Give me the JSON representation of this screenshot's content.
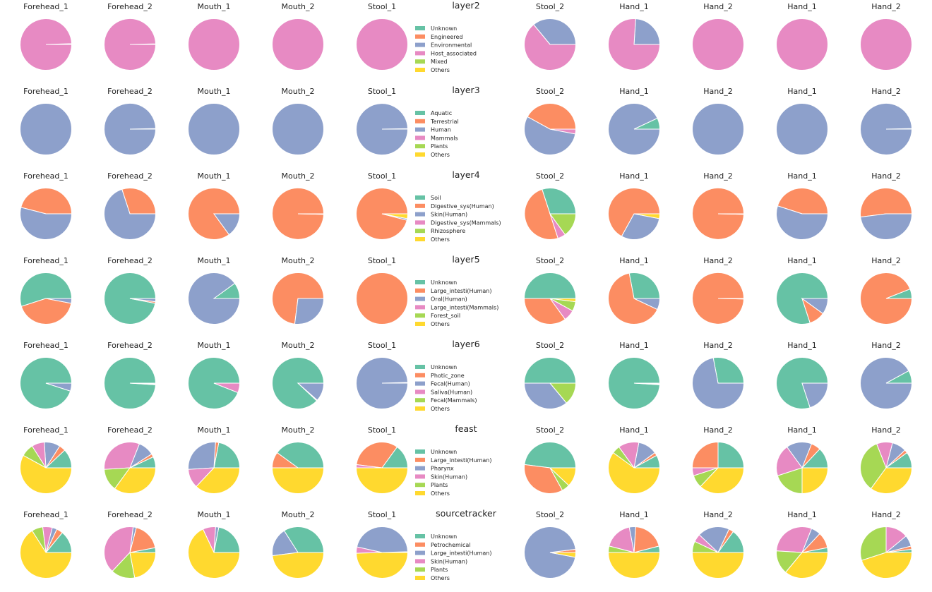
{
  "colors": [
    "#66c2a5",
    "#fc8d62",
    "#8da0cb",
    "#e78ac3",
    "#a6d854",
    "#ffd92f"
  ],
  "sample_labels": [
    "Forehead_1",
    "Forehead_2",
    "Mouth_1",
    "Mouth_2",
    "Stool_1",
    "Stool_2",
    "Hand_1",
    "Hand_2",
    "Hand_1",
    "Hand_2"
  ],
  "chart_data": [
    {
      "type": "pie",
      "title": "layer2",
      "legend": [
        "Unknown",
        "Engineered",
        "Environmental",
        "Host_associated",
        "Mixed",
        "Others"
      ],
      "pies": [
        [
          0,
          0,
          0.005,
          0.995,
          0,
          0
        ],
        [
          0,
          0,
          0.004,
          0.996,
          0,
          0
        ],
        [
          0,
          0,
          0,
          1,
          0,
          0
        ],
        [
          0,
          0,
          0,
          1,
          0,
          0
        ],
        [
          0,
          0,
          0,
          1,
          0,
          0
        ],
        [
          0,
          0,
          0.36,
          0.64,
          0,
          0
        ],
        [
          0,
          0,
          0.24,
          0.76,
          0,
          0
        ],
        [
          0,
          0,
          0,
          1,
          0,
          0
        ],
        [
          0,
          0,
          0,
          1,
          0,
          0
        ],
        [
          0,
          0,
          0,
          1,
          0,
          0
        ]
      ]
    },
    {
      "type": "pie",
      "title": "layer3",
      "legend": [
        "Aquatic",
        "Terrestrial",
        "Human",
        "Mammals",
        "Plants",
        "Others"
      ],
      "pies": [
        [
          0,
          0,
          1,
          0,
          0,
          0
        ],
        [
          0,
          0.004,
          0.996,
          0,
          0,
          0
        ],
        [
          0,
          0,
          1,
          0,
          0,
          0
        ],
        [
          0,
          0,
          1,
          0,
          0,
          0
        ],
        [
          0,
          0.003,
          0.997,
          0,
          0,
          0
        ],
        [
          0,
          0.42,
          0.55,
          0.03,
          0,
          0
        ],
        [
          0.07,
          0,
          0.93,
          0,
          0,
          0
        ],
        [
          0,
          0,
          1,
          0,
          0,
          0
        ],
        [
          0,
          0,
          1,
          0,
          0,
          0
        ],
        [
          0,
          0.004,
          0.996,
          0,
          0,
          0
        ]
      ]
    },
    {
      "type": "pie",
      "title": "layer4",
      "legend": [
        "Soil",
        "Digestive_sys(Human)",
        "Skin(Human)",
        "Digestive_sys(Mammals)",
        "Rhizosphere",
        "Others"
      ],
      "pies": [
        [
          0,
          0.46,
          0.54,
          0,
          0,
          0
        ],
        [
          0,
          0.3,
          0.7,
          0,
          0,
          0
        ],
        [
          0,
          0.85,
          0.15,
          0,
          0,
          0
        ],
        [
          0,
          0.997,
          0.003,
          0,
          0,
          0
        ],
        [
          0,
          0.96,
          0.01,
          0,
          0,
          0.03
        ],
        [
          0.3,
          0.5,
          0,
          0.05,
          0.15,
          0
        ],
        [
          0,
          0.67,
          0.3,
          0,
          0,
          0.03
        ],
        [
          0,
          0.997,
          0.003,
          0,
          0,
          0
        ],
        [
          0,
          0.45,
          0.55,
          0,
          0,
          0
        ],
        [
          0,
          0.52,
          0.48,
          0,
          0,
          0
        ]
      ]
    },
    {
      "type": "pie",
      "title": "layer5",
      "legend": [
        "Unknown",
        "Large_intesti(Human)",
        "Oral(Human)",
        "Large_intesti(Mammals)",
        "Forest_soil",
        "Others"
      ],
      "pies": [
        [
          0.55,
          0.42,
          0.03,
          0,
          0,
          0
        ],
        [
          0.97,
          0.01,
          0.02,
          0,
          0,
          0
        ],
        [
          0.1,
          0,
          0.9,
          0,
          0,
          0
        ],
        [
          0,
          0.73,
          0.27,
          0,
          0,
          0
        ],
        [
          0,
          1,
          0,
          0,
          0,
          0
        ],
        [
          0.5,
          0.35,
          0,
          0.07,
          0.06,
          0.02
        ],
        [
          0.28,
          0.65,
          0.07,
          0,
          0,
          0
        ],
        [
          0,
          0.997,
          0,
          0,
          0,
          0.003
        ],
        [
          0.8,
          0.1,
          0.1,
          0,
          0,
          0
        ],
        [
          0.06,
          0.94,
          0,
          0,
          0,
          0
        ]
      ]
    },
    {
      "type": "pie",
      "title": "layer6",
      "legend": [
        "Unknown",
        "Photic_zone",
        "Fecal(Human)",
        "Saliva(Human)",
        "Fecal(Mammals)",
        "Others"
      ],
      "pies": [
        [
          0.95,
          0,
          0.05,
          0,
          0,
          0
        ],
        [
          0.99,
          0.005,
          0.005,
          0,
          0,
          0
        ],
        [
          0.94,
          0,
          0,
          0.06,
          0,
          0
        ],
        [
          0.88,
          0.005,
          0.115,
          0,
          0,
          0
        ],
        [
          0,
          0.005,
          0.995,
          0,
          0,
          0
        ],
        [
          0.5,
          0,
          0.36,
          0,
          0.14,
          0
        ],
        [
          0.99,
          0.005,
          0.005,
          0,
          0,
          0
        ],
        [
          0.28,
          0,
          0.72,
          0,
          0,
          0
        ],
        [
          0.8,
          0,
          0.2,
          0,
          0,
          0
        ],
        [
          0.08,
          0,
          0.92,
          0,
          0,
          0
        ]
      ]
    },
    {
      "type": "pie",
      "title": "feast",
      "legend": [
        "Unknown",
        "Large_intesti(Human)",
        "Pharynx",
        "Skin(Human)",
        "Plants",
        "Others"
      ],
      "pies": [
        [
          0.12,
          0.04,
          0.1,
          0.08,
          0.08,
          0.58
        ],
        [
          0.07,
          0.02,
          0.1,
          0.32,
          0.14,
          0.35
        ],
        [
          0.22,
          0.02,
          0.27,
          0.12,
          0,
          0.37
        ],
        [
          0.4,
          0.1,
          0,
          0,
          0,
          0.5
        ],
        [
          0.15,
          0.33,
          0,
          0.02,
          0,
          0.5
        ],
        [
          0.48,
          0.35,
          0,
          0,
          0.05,
          0.12
        ],
        [
          0.08,
          0.02,
          0.12,
          0.13,
          0.05,
          0.6
        ],
        [
          0.25,
          0.25,
          0,
          0.05,
          0.08,
          0.37
        ],
        [
          0.13,
          0.06,
          0.16,
          0.2,
          0.2,
          0.25
        ],
        [
          0.1,
          0.02,
          0.09,
          0.1,
          0.34,
          0.35
        ]
      ]
    },
    {
      "type": "pie",
      "title": "sourcetracker",
      "legend": [
        "Unknown",
        "Petrochemical",
        "Large_intesti(Human)",
        "Skin(Human)",
        "Plants",
        "Others"
      ],
      "pies": [
        [
          0.14,
          0.04,
          0.03,
          0.06,
          0.07,
          0.66
        ],
        [
          0.03,
          0.18,
          0.02,
          0.4,
          0.15,
          0.22
        ],
        [
          0.22,
          0,
          0.02,
          0.08,
          0,
          0.68
        ],
        [
          0.34,
          0,
          0.18,
          0,
          0,
          0.48
        ],
        [
          0.005,
          0,
          0.46,
          0.04,
          0,
          0.495
        ],
        [
          0,
          0.02,
          0.95,
          0,
          0,
          0.03
        ],
        [
          0.04,
          0.2,
          0.04,
          0.18,
          0.04,
          0.5
        ],
        [
          0.15,
          0.03,
          0.2,
          0.05,
          0.07,
          0.5
        ],
        [
          0.03,
          0.1,
          0.06,
          0.3,
          0.15,
          0.36
        ],
        [
          0.02,
          0.02,
          0.07,
          0.14,
          0.3,
          0.45
        ]
      ]
    }
  ]
}
